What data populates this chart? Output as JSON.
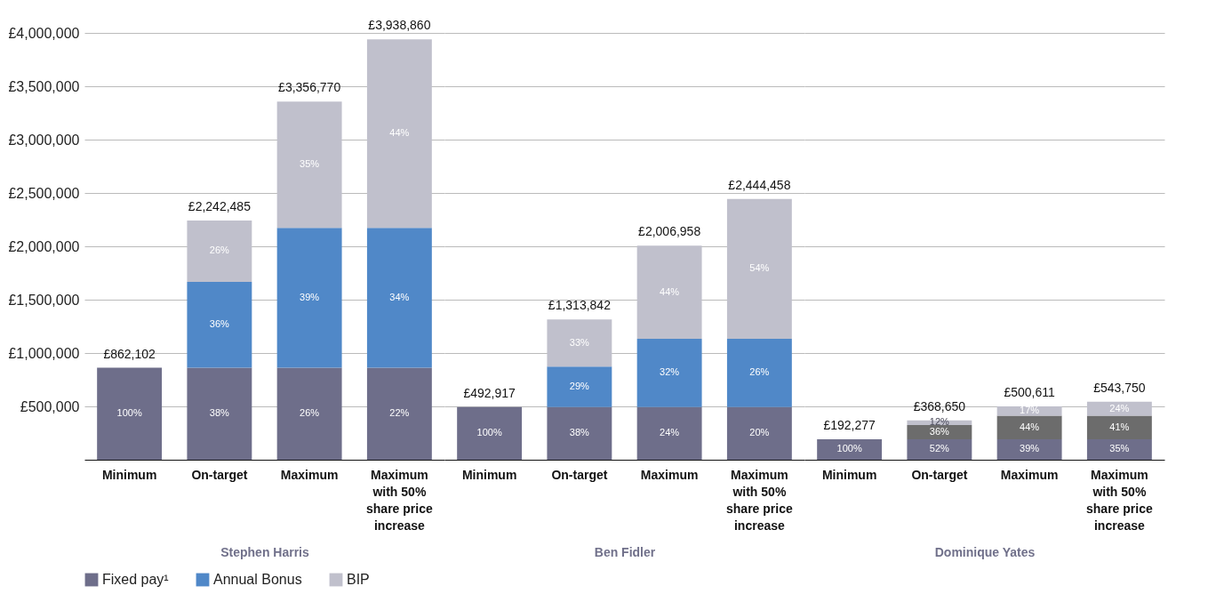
{
  "chart_data": [
    {
      "type": "bar",
      "stacked": true,
      "xlabel": "Stephen Harris",
      "categories": [
        "Minimum",
        "On-target",
        "Maximum",
        "Maximum with 50% share price increase"
      ],
      "ylim": [
        0,
        4000000
      ],
      "yticks": [
        {
          "value": 500000,
          "label": "£500,000"
        },
        {
          "value": 1000000,
          "label": "£1,000,000"
        },
        {
          "value": 1500000,
          "label": "£1,500,000"
        },
        {
          "value": 2000000,
          "label": "£2,000,000"
        },
        {
          "value": 2500000,
          "label": "£2,500,000"
        },
        {
          "value": 3000000,
          "label": "£3,000,000"
        },
        {
          "value": 3500000,
          "label": "£3,500,000"
        },
        {
          "value": 4000000,
          "label": "£4,000,000"
        }
      ],
      "grid": "y",
      "legend": "bottom left",
      "series": [
        {
          "name": "Fixed pay¹",
          "color": "#6e6e8a",
          "values": [
            862102,
            862102,
            862102,
            862102
          ]
        },
        {
          "name": "Annual Bonus",
          "color": "#5088c8",
          "values": [
            null,
            805000,
            1310000,
            1310000
          ]
        },
        {
          "name": "BIP",
          "color": "#c0c0cc",
          "values": [
            null,
            575383,
            1184668,
            1766758
          ]
        }
      ],
      "totals": [
        "£862,102",
        "£2,242,485",
        "£3,356,770",
        "£3,938,860"
      ],
      "annotations": [
        "100%",
        "38%",
        "36%",
        "26%",
        "26%",
        "39%",
        "35%",
        "22%",
        "34%",
        "44%"
      ]
    },
    {
      "type": "bar",
      "stacked": true,
      "xlabel": "Ben Fidler",
      "categories": [
        "Minimum",
        "On-target",
        "Maximum",
        "Maximum with 50% share price increase"
      ],
      "ylim": [
        0,
        4000000
      ],
      "yticks": [
        500000,
        1000000,
        1500000,
        2000000,
        2500000,
        3000000,
        3500000,
        4000000
      ],
      "grid": "y",
      "tick_labels": "x",
      "series": [
        {
          "color": "#6e6e8a",
          "values": [
            492917,
            492917,
            492917,
            492917
          ]
        },
        {
          "color": "#5088c8",
          "values": [
            null,
            380000,
            640000,
            640000
          ]
        },
        {
          "color": "#c0c0cc",
          "values": [
            null,
            440925,
            874041,
            1311541
          ]
        }
      ],
      "totals": [
        "£492,917",
        "£1,313,842",
        "£2,006,958",
        "£2,444,458"
      ],
      "annotations": [
        "100%",
        "38%",
        "29%",
        "33%",
        "24%",
        "32%",
        "44%",
        "20%",
        "26%",
        "54%"
      ]
    },
    {
      "type": "bar",
      "stacked": true,
      "xlabel": "Dominique Yates",
      "categories": [
        "Minimum",
        "On-target",
        "Maximum",
        "Maximum with 50% share price increase"
      ],
      "ylim": [
        0,
        4000000
      ],
      "yticks": [
        500000,
        1000000,
        1500000,
        2000000,
        2500000,
        3000000,
        3500000,
        4000000
      ],
      "grid": "y",
      "tick_labels": "x",
      "series": [
        {
          "color": "#6e6e8a",
          "values": [
            192277,
            192277,
            192277,
            192277
          ]
        },
        {
          "color": "#6c6c6c",
          "values": [
            null,
            132700,
            220000,
            220000
          ]
        },
        {
          "color": "#c0c0cc",
          "values": [
            null,
            43673,
            88334,
            131473
          ]
        }
      ],
      "totals": [
        "£192,277",
        "£368,650",
        "£500,611",
        "£543,750"
      ],
      "annotations": [
        "100%",
        "52%",
        "36%",
        "12%",
        "39%",
        "44%",
        "17%",
        "35%",
        "41%",
        "24%"
      ]
    }
  ]
}
